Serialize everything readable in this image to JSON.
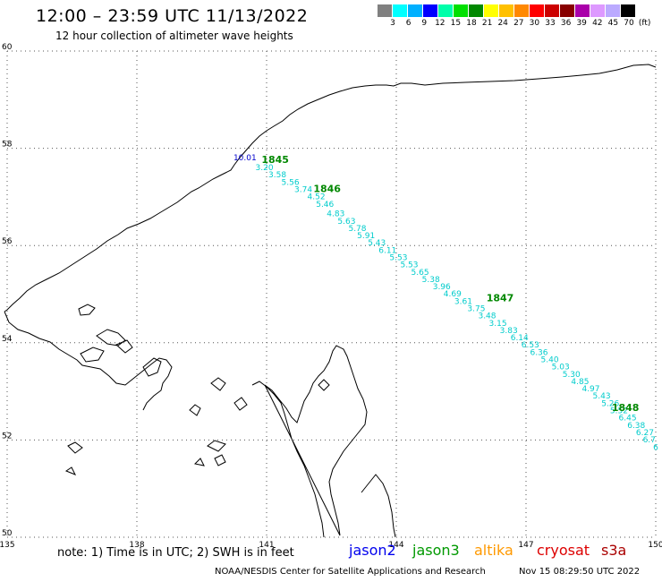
{
  "header": {
    "title": "12:00 – 23:59 UTC 11/13/2022",
    "subtitle": "12 hour collection of altimeter wave heights"
  },
  "color_scale": {
    "labels": [
      "3",
      "6",
      "9",
      "12",
      "15",
      "18",
      "21",
      "24",
      "27",
      "30",
      "33",
      "36",
      "39",
      "42",
      "45",
      "70",
      "(ft)"
    ],
    "colors": [
      "#808080",
      "#00ffff",
      "#00b0ff",
      "#0000ff",
      "#00ffaa",
      "#00e000",
      "#008800",
      "#ffff00",
      "#ffc000",
      "#ff8800",
      "#ff0000",
      "#cc0000",
      "#880000",
      "#aa00aa",
      "#dd99ff",
      "#bbaaff",
      "#000000"
    ]
  },
  "map": {
    "lon_ticks": [
      135,
      138,
      141,
      144,
      147,
      150
    ],
    "lat_ticks": [
      50,
      52,
      54,
      56,
      58,
      60
    ],
    "lon_range": [
      135,
      150
    ],
    "lat_range": [
      50,
      60
    ],
    "track_color": "#00cccc",
    "time_color": "#008800",
    "first_reading": {
      "label": "10.01",
      "color": "#0000cc",
      "lon": 140.5,
      "lat": 57.75
    },
    "readings": [
      {
        "label": "3.20",
        "lon": 140.95,
        "lat": 57.55
      },
      {
        "label": "3.58",
        "lon": 141.25,
        "lat": 57.4
      },
      {
        "label": "5.56",
        "lon": 141.55,
        "lat": 57.25
      },
      {
        "label": "3.74",
        "lon": 141.85,
        "lat": 57.1
      },
      {
        "label": "4.52",
        "lon": 142.15,
        "lat": 56.95
      },
      {
        "label": "5.46",
        "lon": 142.35,
        "lat": 56.8
      },
      {
        "label": "4.83",
        "lon": 142.6,
        "lat": 56.6
      },
      {
        "label": "5.63",
        "lon": 142.85,
        "lat": 56.45
      },
      {
        "label": "5.78",
        "lon": 143.1,
        "lat": 56.3
      },
      {
        "label": "5.91",
        "lon": 143.3,
        "lat": 56.15
      },
      {
        "label": "5.43",
        "lon": 143.55,
        "lat": 56.0
      },
      {
        "label": "6.11",
        "lon": 143.8,
        "lat": 55.85
      },
      {
        "label": "5.53",
        "lon": 144.05,
        "lat": 55.7
      },
      {
        "label": "5.53",
        "lon": 144.3,
        "lat": 55.55
      },
      {
        "label": "5.65",
        "lon": 144.55,
        "lat": 55.4
      },
      {
        "label": "5.38",
        "lon": 144.8,
        "lat": 55.25
      },
      {
        "label": "3.96",
        "lon": 145.05,
        "lat": 55.1
      },
      {
        "label": "4.69",
        "lon": 145.3,
        "lat": 54.95
      },
      {
        "label": "3.61",
        "lon": 145.55,
        "lat": 54.8
      },
      {
        "label": "3.75",
        "lon": 145.85,
        "lat": 54.65
      },
      {
        "label": "3.48",
        "lon": 146.1,
        "lat": 54.5
      },
      {
        "label": "3.15",
        "lon": 146.35,
        "lat": 54.35
      },
      {
        "label": "3.83",
        "lon": 146.6,
        "lat": 54.2
      },
      {
        "label": "6.14",
        "lon": 146.85,
        "lat": 54.05
      },
      {
        "label": "6.53",
        "lon": 147.1,
        "lat": 53.9
      },
      {
        "label": "6.36",
        "lon": 147.3,
        "lat": 53.75
      },
      {
        "label": "5.40",
        "lon": 147.55,
        "lat": 53.6
      },
      {
        "label": "5.03",
        "lon": 147.8,
        "lat": 53.45
      },
      {
        "label": "5.30",
        "lon": 148.05,
        "lat": 53.3
      },
      {
        "label": "4.85",
        "lon": 148.25,
        "lat": 53.15
      },
      {
        "label": "4.97",
        "lon": 148.5,
        "lat": 53.0
      },
      {
        "label": "5.43",
        "lon": 148.75,
        "lat": 52.85
      },
      {
        "label": "5.26",
        "lon": 148.95,
        "lat": 52.7
      },
      {
        "label": "5.52",
        "lon": 149.15,
        "lat": 52.55
      },
      {
        "label": "6.45",
        "lon": 149.35,
        "lat": 52.4
      },
      {
        "label": "6.38",
        "lon": 149.55,
        "lat": 52.25
      },
      {
        "label": "6.27",
        "lon": 149.75,
        "lat": 52.1
      },
      {
        "label": "6.7",
        "lon": 149.85,
        "lat": 51.95
      },
      {
        "label": "6",
        "lon": 150.0,
        "lat": 51.8
      }
    ],
    "times": [
      {
        "label": "1845",
        "lon": 141.2,
        "lat": 57.7
      },
      {
        "label": "1846",
        "lon": 142.4,
        "lat": 57.1
      },
      {
        "label": "1847",
        "lon": 146.4,
        "lat": 54.85
      },
      {
        "label": "1848",
        "lon": 149.3,
        "lat": 52.6
      }
    ]
  },
  "footer": {
    "note": "note: 1) Time is in UTC; 2) SWH is in feet",
    "satellites": [
      {
        "name": "jason2",
        "color": "#0000ee"
      },
      {
        "name": "jason3",
        "color": "#009900"
      },
      {
        "name": "altika",
        "color": "#ff9900"
      },
      {
        "name": "cryosat",
        "color": "#dd0000"
      },
      {
        "name": "s3a",
        "color": "#aa0000"
      }
    ],
    "credit": "NOAA/NESDIS Center for Satellite Applications and Research",
    "timestamp": "Nov 15 08:29:50 UTC 2022"
  }
}
